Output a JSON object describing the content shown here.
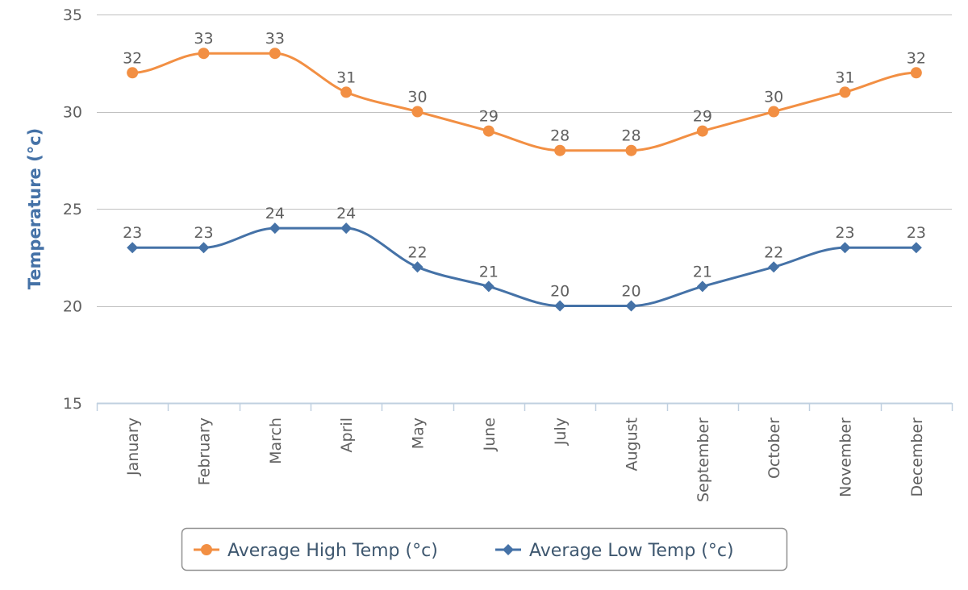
{
  "chart_data": {
    "type": "line",
    "title": "",
    "xlabel": "",
    "ylabel": "Temperature (°c)",
    "ylim": [
      15,
      35
    ],
    "yticks": [
      15,
      20,
      25,
      30,
      35
    ],
    "grid": true,
    "smooth": true,
    "legend_position": "bottom",
    "categories": [
      "January",
      "February",
      "March",
      "April",
      "May",
      "June",
      "July",
      "August",
      "September",
      "October",
      "November",
      "December"
    ],
    "series": [
      {
        "name": "Average High Temp (°c)",
        "values": [
          32,
          33,
          33,
          31,
          30,
          29,
          28,
          28,
          29,
          30,
          31,
          32
        ],
        "color": "#F28F43",
        "marker": "circle"
      },
      {
        "name": "Average Low Temp (°c)",
        "values": [
          23,
          23,
          24,
          24,
          22,
          21,
          20,
          20,
          21,
          22,
          23,
          23
        ],
        "color": "#4572A7",
        "marker": "diamond"
      }
    ]
  }
}
